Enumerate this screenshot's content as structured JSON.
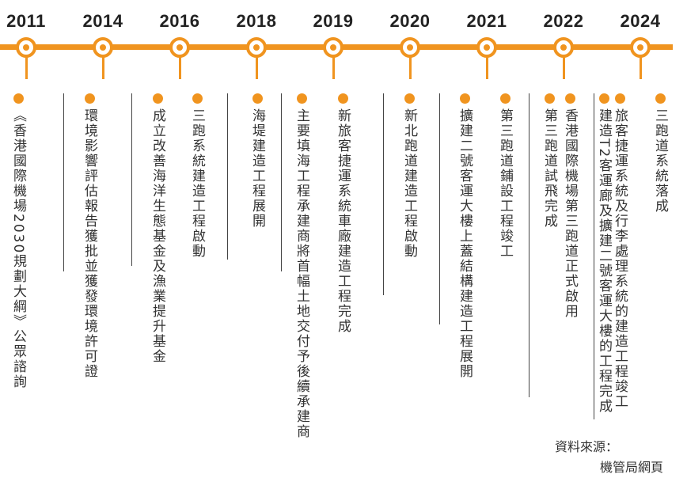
{
  "timeline": {
    "years": [
      "2011",
      "2014",
      "2016",
      "2018",
      "2019",
      "2020",
      "2021",
      "2022",
      "2024"
    ],
    "events": [
      [
        "《香港國際機場2030規劃大綱》公眾諮詢"
      ],
      [
        "環境影響評估報告獲批並獲發環境許可證"
      ],
      [
        "三跑系統建造工程啟動",
        "成立改善海洋生態基金及漁業提升基金"
      ],
      [
        "海堤建造工程展開"
      ],
      [
        "新旅客捷運系統車廠建造工程完成",
        "主要填海工程承建商將首幅土地交付予後續承建商"
      ],
      [
        "新北跑道建造工程啟動"
      ],
      [
        "第三跑道鋪設工程竣工",
        "擴建二號客運大樓上蓋結構建造工程展開"
      ],
      [
        "香港國際機場第三跑道正式啟用",
        "第三跑道試飛完成"
      ],
      [
        "三跑道系統落成",
        "旅客捷運系統及行李處理系統的建造工程竣工",
        "建造T2客運廊及擴建二號客運大樓的工程完成"
      ]
    ]
  },
  "source": {
    "label": "資料來源：",
    "value": "機管局網頁"
  },
  "colors": {
    "accent": "#f0941f",
    "text": "#333333",
    "separator": "#444444"
  }
}
